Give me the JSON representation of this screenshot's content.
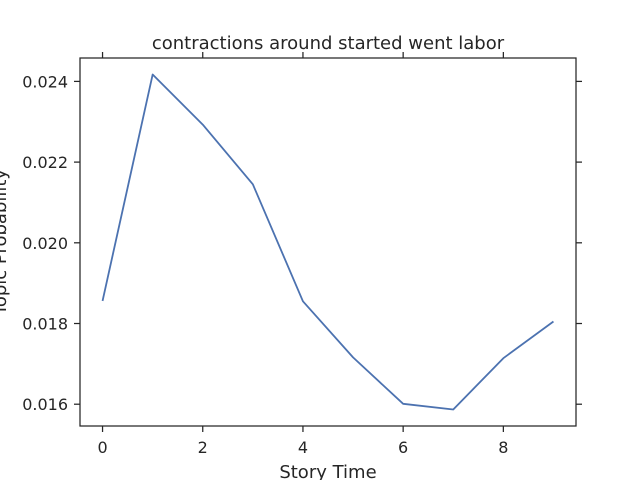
{
  "chart_data": {
    "type": "line",
    "title": "contractions around started went labor",
    "xlabel": "Story Time",
    "ylabel": "Topic Probability",
    "xlim": [
      -0.45,
      9.45
    ],
    "ylim": [
      0.01546,
      0.02458
    ],
    "xticks": [
      0,
      2,
      4,
      6,
      8
    ],
    "yticks": [
      0.016,
      0.018,
      0.02,
      0.022,
      0.024
    ],
    "xtick_labels": [
      "0",
      "2",
      "4",
      "6",
      "8"
    ],
    "ytick_labels": [
      "0.016",
      "0.018",
      "0.020",
      "0.022",
      "0.024"
    ],
    "grid": false,
    "series": [
      {
        "color": "#4c72b0",
        "x": [
          0,
          1,
          2,
          3,
          4,
          5,
          6,
          7,
          8,
          9
        ],
        "y": [
          0.01856,
          0.02417,
          0.02293,
          0.02145,
          0.01855,
          0.01716,
          0.01601,
          0.01587,
          0.01714,
          0.01805
        ]
      }
    ]
  }
}
